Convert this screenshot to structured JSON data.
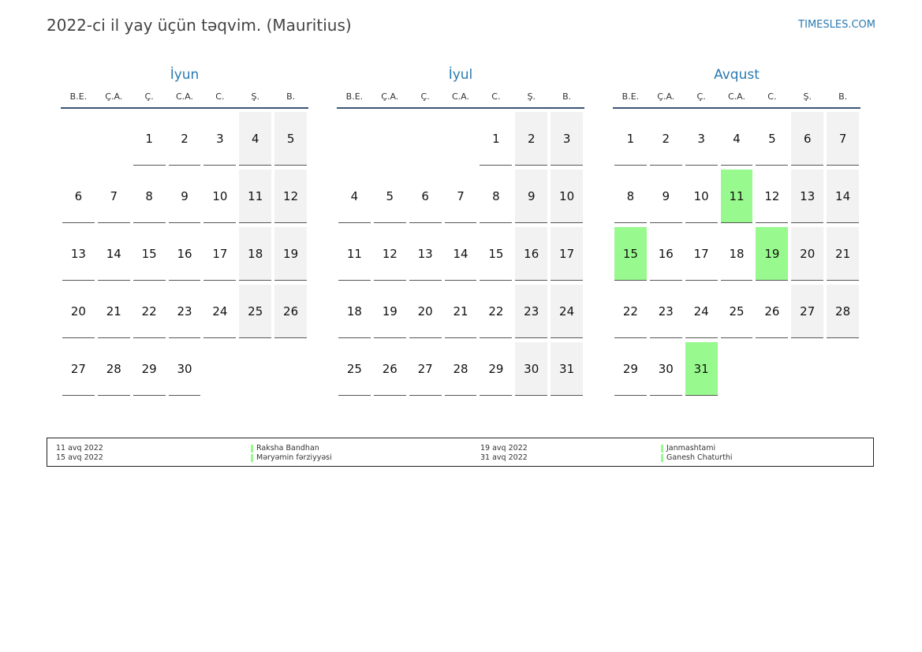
{
  "header": {
    "title": "2022-ci il yay üçün təqvim. (Mauritius)",
    "site": "TIMESLES.COM"
  },
  "colors": {
    "accent": "#2a7ab0",
    "holiday": "#98f98e",
    "weekend": "#f2f2f2",
    "rule": "#3c5678"
  },
  "weekdays": [
    "B.E.",
    "Ç.A.",
    "Ç.",
    "C.A.",
    "C.",
    "Ş.",
    "B."
  ],
  "months": [
    {
      "name": "İyun",
      "weeks": [
        [
          "",
          "",
          "1",
          "2",
          "3",
          "4",
          "5"
        ],
        [
          "6",
          "7",
          "8",
          "9",
          "10",
          "11",
          "12"
        ],
        [
          "13",
          "14",
          "15",
          "16",
          "17",
          "18",
          "19"
        ],
        [
          "20",
          "21",
          "22",
          "23",
          "24",
          "25",
          "26"
        ],
        [
          "27",
          "28",
          "29",
          "30",
          "",
          "",
          ""
        ]
      ],
      "holidays": []
    },
    {
      "name": "İyul",
      "weeks": [
        [
          "",
          "",
          "",
          "",
          "1",
          "2",
          "3"
        ],
        [
          "4",
          "5",
          "6",
          "7",
          "8",
          "9",
          "10"
        ],
        [
          "11",
          "12",
          "13",
          "14",
          "15",
          "16",
          "17"
        ],
        [
          "18",
          "19",
          "20",
          "21",
          "22",
          "23",
          "24"
        ],
        [
          "25",
          "26",
          "27",
          "28",
          "29",
          "30",
          "31"
        ]
      ],
      "holidays": []
    },
    {
      "name": "Avqust",
      "weeks": [
        [
          "1",
          "2",
          "3",
          "4",
          "5",
          "6",
          "7"
        ],
        [
          "8",
          "9",
          "10",
          "11",
          "12",
          "13",
          "14"
        ],
        [
          "15",
          "16",
          "17",
          "18",
          "19",
          "20",
          "21"
        ],
        [
          "22",
          "23",
          "24",
          "25",
          "26",
          "27",
          "28"
        ],
        [
          "29",
          "30",
          "31",
          "",
          "",
          "",
          ""
        ]
      ],
      "holidays": [
        "11",
        "15",
        "19",
        "31"
      ]
    }
  ],
  "legend": {
    "left_dates": [
      "11 avq 2022",
      "15 avq 2022"
    ],
    "left_names": [
      "Raksha Bandhan",
      "Məryəmin fərziyyəsi"
    ],
    "right_dates": [
      "19 avq 2022",
      "31 avq 2022"
    ],
    "right_names": [
      "Janmashtami",
      "Ganesh Chaturthi"
    ]
  }
}
